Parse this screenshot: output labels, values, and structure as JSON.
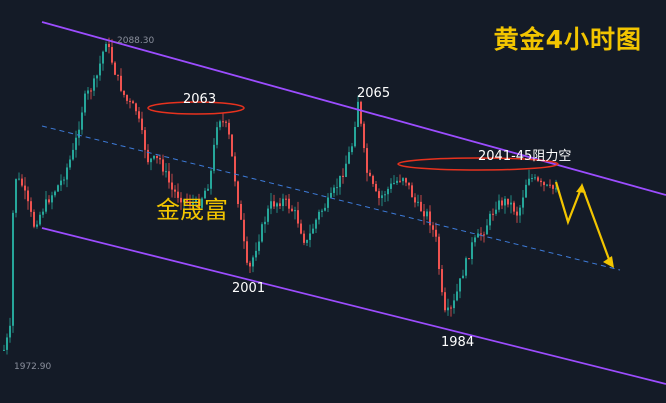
{
  "title": "黄金4小时图",
  "watermark": "金晟富",
  "chart_data": {
    "type": "candlestick",
    "title": "黄金4小时图",
    "high_label": "2088.30",
    "low_label": "1972.90",
    "annotations": [
      {
        "text": "2063",
        "value": 2063
      },
      {
        "text": "2065",
        "value": 2065
      },
      {
        "text": "2001",
        "value": 2001
      },
      {
        "text": "1984",
        "value": 1984
      },
      {
        "text": "2041-45阻力空",
        "value": 2043
      }
    ],
    "colors": {
      "up": "#26a69a",
      "down": "#ef5350",
      "channel": "#9c4dff",
      "midline": "#3d7bd9",
      "ellipse": "#e8321e",
      "arrow": "#f2c500",
      "text": "#ffffff",
      "background": "#141b27"
    }
  }
}
